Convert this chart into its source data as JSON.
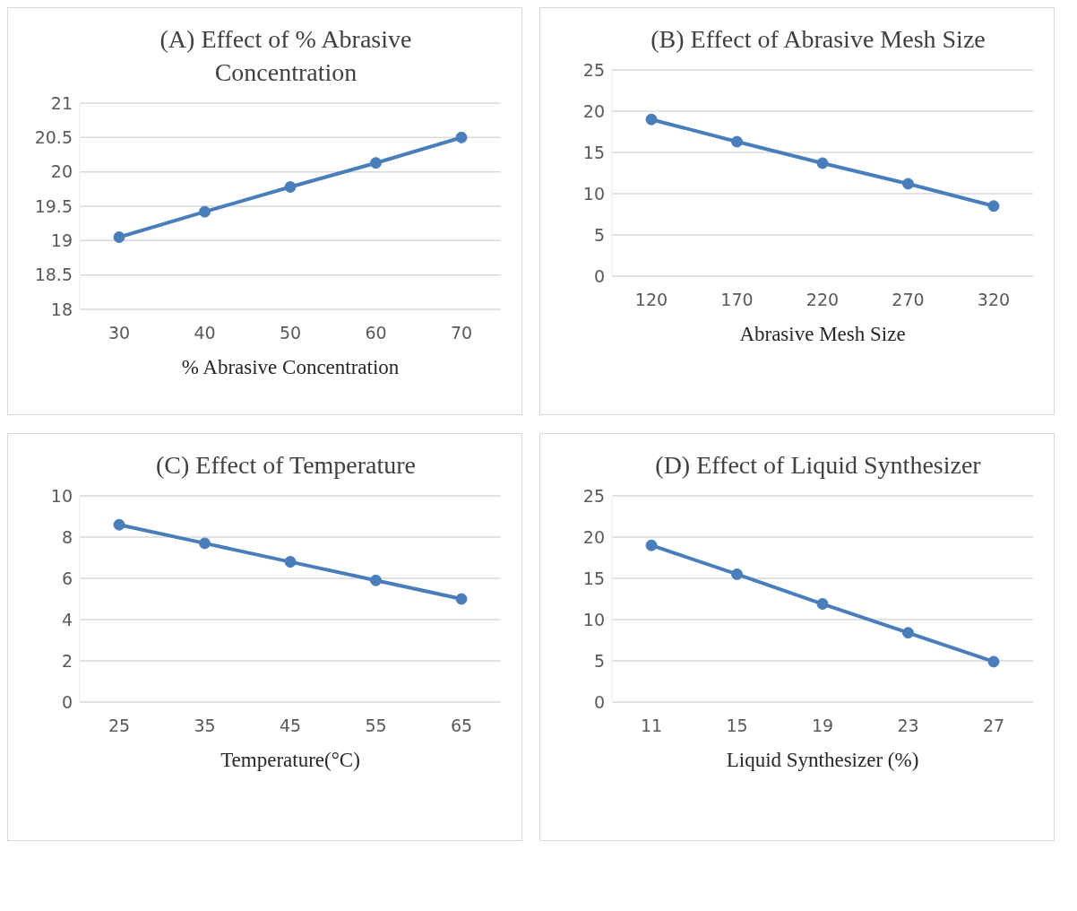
{
  "chart_data": [
    {
      "type": "line",
      "title": "(A) Effect of % Abrasive Concentration",
      "xlabel": "% Abrasive Concentration",
      "categories": [
        "30",
        "40",
        "50",
        "60",
        "70"
      ],
      "series": [
        {
          "color": "#4a7ebb",
          "values": [
            19.05,
            19.42,
            19.78,
            20.13,
            20.5
          ]
        }
      ],
      "ylim": [
        18,
        21
      ],
      "yticks": [
        18,
        18.5,
        19,
        19.5,
        20,
        20.5,
        21
      ],
      "grid": "y",
      "marker": "circle",
      "line_style": "solid",
      "legend": false
    },
    {
      "type": "line",
      "title": "(B) Effect of Abrasive Mesh Size",
      "xlabel": "Abrasive Mesh Size",
      "categories": [
        "120",
        "170",
        "220",
        "270",
        "320"
      ],
      "series": [
        {
          "color": "#4a7ebb",
          "values": [
            19.0,
            16.3,
            13.7,
            11.2,
            8.5
          ]
        }
      ],
      "ylim": [
        0,
        25
      ],
      "yticks": [
        0,
        5,
        10,
        15,
        20,
        25
      ],
      "grid": "y",
      "marker": "circle",
      "line_style": "solid",
      "legend": false
    },
    {
      "type": "line",
      "title": "(C) Effect of Temperature",
      "xlabel": "Temperature(°C)",
      "categories": [
        "25",
        "35",
        "45",
        "55",
        "65"
      ],
      "series": [
        {
          "color": "#4a7ebb",
          "values": [
            8.6,
            7.7,
            6.8,
            5.9,
            5.0
          ]
        }
      ],
      "ylim": [
        0,
        10
      ],
      "yticks": [
        0,
        2,
        4,
        6,
        8,
        10
      ],
      "grid": "y",
      "marker": "circle",
      "line_style": "solid",
      "legend": false
    },
    {
      "type": "line",
      "title": "(D) Effect of Liquid Synthesizer",
      "xlabel": "Liquid Synthesizer (%)",
      "categories": [
        "11",
        "15",
        "19",
        "23",
        "27"
      ],
      "series": [
        {
          "color": "#4a7ebb",
          "values": [
            19.0,
            15.5,
            11.9,
            8.4,
            4.9
          ]
        }
      ],
      "ylim": [
        0,
        25
      ],
      "yticks": [
        0,
        5,
        10,
        15,
        20,
        25
      ],
      "grid": "y",
      "marker": "circle",
      "line_style": "solid",
      "legend": false
    }
  ]
}
